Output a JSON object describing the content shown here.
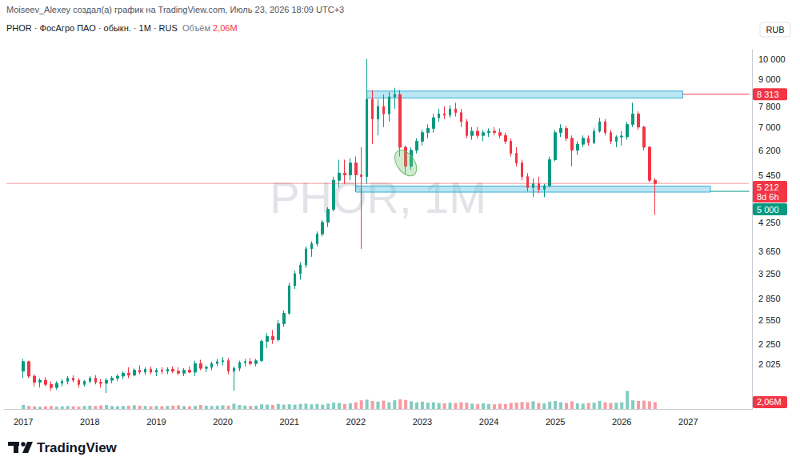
{
  "chart_data": {
    "type": "candlestick",
    "creator_line": "Moiseev_Alexey создал(а) график на TradingView.com, Июль 23, 2026 18:09 UTC+3",
    "title": "PHOR · ФосАгро ПАО · обыкн. · 1M · RUS",
    "volume_title": "Объём",
    "volume_value_label": "2,06M",
    "currency": "RUB",
    "watermark": "PHOR, 1M",
    "logo": "TradingView",
    "log": "y",
    "grid": false,
    "categories": [
      null,
      null,
      null,
      "2017",
      null,
      null,
      null,
      null,
      null,
      null,
      null,
      null,
      null,
      null,
      null,
      "2018",
      null,
      null,
      null,
      null,
      null,
      null,
      null,
      null,
      null,
      null,
      null,
      "2019",
      null,
      null,
      null,
      null,
      null,
      null,
      null,
      null,
      null,
      null,
      null,
      "2020",
      null,
      null,
      null,
      null,
      null,
      null,
      null,
      null,
      null,
      null,
      null,
      "2021",
      null,
      null,
      null,
      null,
      null,
      null,
      null,
      null,
      null,
      null,
      null,
      "2022",
      null,
      null,
      null,
      null,
      null,
      null,
      null,
      null,
      null,
      null,
      null,
      "2023",
      null,
      null,
      null,
      null,
      null,
      null,
      null,
      null,
      null,
      null,
      null,
      "2024",
      null,
      null,
      null,
      null,
      null,
      null,
      null,
      null,
      null,
      null,
      null,
      "2025",
      null,
      null,
      null,
      null,
      null,
      null,
      null,
      null,
      null,
      null,
      null,
      "2026",
      null,
      null,
      null,
      null,
      null,
      null,
      null,
      null,
      null,
      null,
      null,
      "2027",
      null,
      null,
      null,
      null,
      null,
      null,
      null,
      null,
      null,
      null,
      null
    ],
    "series": [
      {
        "name": "PHOR",
        "type": "candlestick",
        "color": {
          "up": "#089981",
          "down": "#f23645"
        },
        "open": [
          null,
          null,
          null,
          1950,
          2050,
          1900,
          1840,
          1860,
          1820,
          1790,
          1830,
          1850,
          1880,
          1860,
          1820,
          1850,
          1880,
          1840,
          1830,
          1860,
          1880,
          1900,
          1930,
          1910,
          1960,
          1940,
          1970,
          1940,
          1960,
          1950,
          1970,
          1950,
          1930,
          1960,
          1940,
          2030,
          1980,
          1990,
          2030,
          2050,
          2060,
          1950,
          1980,
          2040,
          2050,
          2030,
          2060,
          2280,
          2340,
          2300,
          2500,
          2640,
          3050,
          3250,
          3400,
          3700,
          3800,
          4000,
          4250,
          4550,
          5300,
          5500,
          5450,
          5800,
          5450,
          5400,
          8100,
          7300,
          7800,
          7500,
          8200,
          8300,
          6300,
          5700,
          6200,
          6500,
          6800,
          6950,
          7350,
          7500,
          7450,
          7700,
          7550,
          7200,
          6700,
          6850,
          6700,
          6800,
          6850,
          6800,
          6700,
          6500,
          6100,
          5800,
          5400,
          5100,
          5200,
          5050,
          5150,
          5900,
          6800,
          6950,
          6600,
          6200,
          6400,
          6600,
          6450,
          6850,
          7200,
          6800,
          6500,
          6650,
          6650,
          7100,
          7500,
          7000,
          6300,
          5300,
          null,
          null,
          null,
          null,
          null,
          null,
          null,
          null,
          null,
          null,
          null,
          null,
          null,
          null,
          null,
          null,
          null
        ],
        "high": [
          null,
          null,
          null,
          2080,
          2060,
          1920,
          1880,
          1890,
          1850,
          1850,
          1870,
          1900,
          1910,
          1880,
          1860,
          1900,
          1910,
          1870,
          1880,
          1900,
          1920,
          1950,
          1990,
          1980,
          2010,
          1990,
          2000,
          1980,
          1990,
          1990,
          2000,
          1990,
          1980,
          2000,
          2060,
          2070,
          2010,
          2050,
          2080,
          2100,
          2090,
          2000,
          2060,
          2080,
          2090,
          2080,
          2300,
          2380,
          2420,
          2550,
          2680,
          3100,
          3300,
          3450,
          3750,
          3850,
          4050,
          4300,
          4600,
          5400,
          5900,
          5900,
          5950,
          6000,
          6300,
          10000,
          8500,
          8100,
          8300,
          8400,
          8600,
          8500,
          6350,
          6300,
          6600,
          6900,
          7100,
          7500,
          7700,
          7800,
          7850,
          7950,
          7700,
          7300,
          7000,
          7000,
          6900,
          6950,
          7000,
          6950,
          6800,
          6600,
          6300,
          5900,
          5500,
          5350,
          5400,
          5200,
          6000,
          6900,
          7100,
          7050,
          6700,
          6500,
          6700,
          6700,
          6950,
          7350,
          7300,
          6900,
          6700,
          6850,
          7200,
          7950,
          7600,
          7050,
          6350,
          5350,
          null,
          null,
          null,
          null,
          null,
          null,
          null,
          null,
          null,
          null,
          null,
          null,
          null,
          null,
          null,
          null,
          null
        ],
        "low": [
          null,
          null,
          null,
          1880,
          1880,
          1800,
          1790,
          1800,
          1760,
          1770,
          1800,
          1820,
          1840,
          1790,
          1800,
          1830,
          1820,
          1790,
          1740,
          1830,
          1850,
          1870,
          1880,
          1900,
          1920,
          1910,
          1920,
          1900,
          1920,
          1920,
          1930,
          1910,
          1900,
          1930,
          1900,
          1960,
          1940,
          1960,
          2000,
          2010,
          1920,
          1760,
          1950,
          2000,
          2010,
          2000,
          2050,
          2200,
          2250,
          2280,
          2460,
          2620,
          3000,
          3150,
          3350,
          3550,
          3750,
          3950,
          4150,
          4500,
          5100,
          5200,
          5300,
          5000,
          3700,
          5200,
          6400,
          6700,
          7000,
          7200,
          7700,
          6000,
          5450,
          5600,
          6100,
          6350,
          6600,
          6800,
          7200,
          7300,
          7350,
          7400,
          7000,
          6600,
          6550,
          6600,
          6500,
          6650,
          6700,
          6600,
          6400,
          6000,
          5700,
          5300,
          5000,
          4850,
          4950,
          4850,
          5100,
          5850,
          6650,
          6500,
          5700,
          6050,
          6300,
          6350,
          6400,
          6800,
          6700,
          6400,
          6300,
          6350,
          6550,
          7000,
          6900,
          6200,
          5250,
          4420,
          null,
          null,
          null,
          null,
          null,
          null,
          null,
          null,
          null,
          null,
          null,
          null,
          null,
          null,
          null,
          null,
          null
        ],
        "close": [
          null,
          null,
          null,
          2050,
          1900,
          1840,
          1860,
          1820,
          1790,
          1830,
          1850,
          1880,
          1860,
          1820,
          1850,
          1880,
          1840,
          1830,
          1860,
          1880,
          1900,
          1930,
          1910,
          1960,
          1940,
          1970,
          1940,
          1960,
          1950,
          1970,
          1950,
          1930,
          1960,
          1940,
          2030,
          1980,
          1990,
          2030,
          2050,
          2060,
          1950,
          1980,
          2040,
          2050,
          2030,
          2060,
          2280,
          2340,
          2300,
          2500,
          2640,
          3050,
          3250,
          3400,
          3700,
          3800,
          4000,
          4250,
          4550,
          5300,
          5500,
          5450,
          5800,
          5450,
          5400,
          8100,
          7300,
          7800,
          7500,
          8200,
          8300,
          6300,
          5700,
          6200,
          6500,
          6800,
          6950,
          7350,
          7500,
          7450,
          7700,
          7550,
          7200,
          6700,
          6850,
          6700,
          6800,
          6850,
          6800,
          6700,
          6500,
          6100,
          5800,
          5400,
          5100,
          5200,
          5050,
          5150,
          5900,
          6800,
          6950,
          6600,
          6200,
          6400,
          6600,
          6450,
          6850,
          7200,
          6800,
          6500,
          6650,
          6680,
          7100,
          7500,
          7000,
          6300,
          5300,
          5212,
          null,
          null,
          null,
          null,
          null,
          null,
          null,
          null,
          null,
          null,
          null,
          null,
          null,
          null,
          null,
          null,
          null
        ]
      },
      {
        "name": "Объём",
        "type": "bar",
        "axis": "y2",
        "values": [
          null,
          null,
          null,
          1.2,
          0.9,
          0.8,
          0.7,
          0.8,
          0.9,
          0.7,
          0.8,
          0.9,
          0.8,
          0.7,
          0.9,
          1.0,
          0.9,
          1.1,
          1.2,
          0.9,
          0.8,
          0.9,
          1.0,
          1.1,
          1.0,
          0.9,
          0.8,
          0.9,
          0.8,
          0.9,
          1.0,
          1.1,
          0.9,
          0.8,
          0.9,
          1.2,
          1.0,
          0.9,
          1.0,
          1.1,
          1.0,
          1.6,
          1.2,
          1.0,
          0.9,
          1.0,
          1.4,
          1.3,
          1.2,
          1.5,
          1.3,
          1.4,
          1.3,
          1.5,
          1.6,
          1.4,
          1.5,
          1.3,
          1.6,
          1.9,
          1.8,
          1.5,
          1.7,
          2.0,
          2.6,
          2.8,
          2.4,
          2.2,
          2.5,
          2.0,
          2.6,
          2.9,
          2.7,
          2.3,
          2.0,
          2.2,
          1.9,
          2.0,
          1.8,
          1.7,
          1.9,
          1.8,
          2.0,
          1.9,
          1.6,
          1.5,
          1.7,
          1.5,
          1.4,
          1.6,
          1.5,
          1.8,
          1.9,
          2.1,
          2.0,
          2.3,
          1.8,
          1.7,
          2.2,
          2.4,
          2.0,
          1.8,
          2.3,
          1.7,
          1.6,
          1.8,
          1.9,
          2.4,
          2.0,
          1.8,
          1.9,
          2.0,
          5.4,
          2.6,
          2.4,
          2.5,
          2.3,
          2.06,
          null,
          null,
          null,
          null,
          null,
          null,
          null,
          null,
          null,
          null,
          null,
          null,
          null,
          null,
          null,
          null,
          null
        ]
      }
    ],
    "ylim": [
      1600,
      10500
    ],
    "yticks": [
      {
        "value": 10000,
        "label": "10 000"
      },
      {
        "value": 9000,
        "label": "9 000"
      },
      {
        "value": 7800,
        "label": "7 800"
      },
      {
        "value": 7000,
        "label": "7 000"
      },
      {
        "value": 6200,
        "label": "6 200"
      },
      {
        "value": 5450,
        "label": "5 450"
      },
      {
        "value": 4250,
        "label": "4 250"
      },
      {
        "value": 3650,
        "label": "3 650"
      },
      {
        "value": 3250,
        "label": "3 250"
      },
      {
        "value": 2850,
        "label": "2 850"
      },
      {
        "value": 2550,
        "label": "2 550"
      },
      {
        "value": 2250,
        "label": "2 250"
      },
      {
        "value": 2025,
        "label": "2 025"
      }
    ],
    "y2lim": [
      0,
      12
    ],
    "y2ticks": [],
    "zones": [
      {
        "from": 65,
        "to": 122,
        "low": 8150,
        "high": 8450
      },
      {
        "from": 63,
        "to": 127,
        "low": 4980,
        "high": 5140
      }
    ],
    "levels": [
      {
        "value": 8313,
        "label": "8 313",
        "color": "#f23645",
        "from": 122,
        "line_style": "solid"
      },
      {
        "value": 5212,
        "label": "5 212",
        "sublabel": "8d 6h",
        "color": "#f23645",
        "from": 0,
        "line_style": "dotted"
      },
      {
        "value": 5000,
        "label": "5 000",
        "color": "#089981",
        "from": 127,
        "line_style": "solid"
      }
    ],
    "annotations": [
      {
        "type": "ellipse",
        "x": 72,
        "value": 5800
      }
    ]
  }
}
